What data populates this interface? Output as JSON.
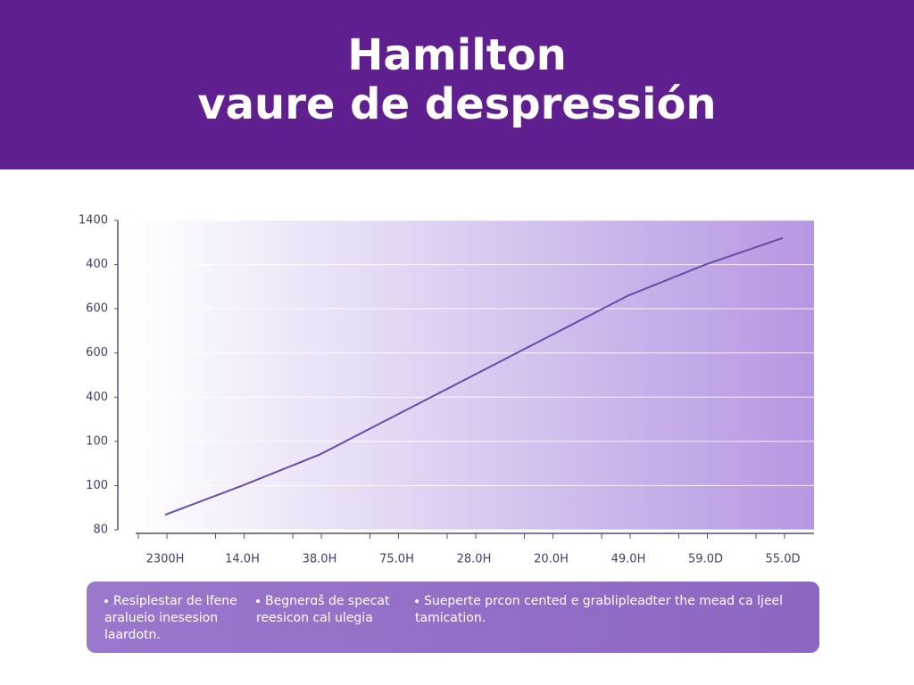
{
  "chart_data": {
    "type": "line",
    "title": [
      "Hamilton",
      "vaure de despressión"
    ],
    "categories": [
      "2300H",
      "14.0H",
      "38.0H",
      "75.0H",
      "28.0H",
      "20.0H",
      "49.0H",
      "59.0D",
      "55.0D"
    ],
    "series": [
      {
        "color": "#6a4aa8",
        "values": [
          0.34,
          1.0,
          1.7,
          2.6,
          3.5,
          4.4,
          5.3,
          6.0,
          6.6
        ]
      }
    ],
    "ylim": [
      0,
      7
    ],
    "yticks": [
      {
        "value": 0,
        "label": "80"
      },
      {
        "value": 1,
        "label": "100"
      },
      {
        "value": 2,
        "label": "100"
      },
      {
        "value": 3,
        "label": "400"
      },
      {
        "value": 4,
        "label": "600"
      },
      {
        "value": 5,
        "label": "600"
      },
      {
        "value": 6,
        "label": "400"
      },
      {
        "value": 7,
        "label": "1400"
      }
    ],
    "grid": true,
    "notes": [
      [
        "Resiplestar de lfene",
        "aralueio inesesion",
        "laardotn."
      ],
      [
        "Begnerɑš de specat",
        "reesicon cal ulegia"
      ],
      [
        "Sueperte prcon cented e grablipleadter the mead ca ljeel",
        "tamication."
      ]
    ]
  }
}
